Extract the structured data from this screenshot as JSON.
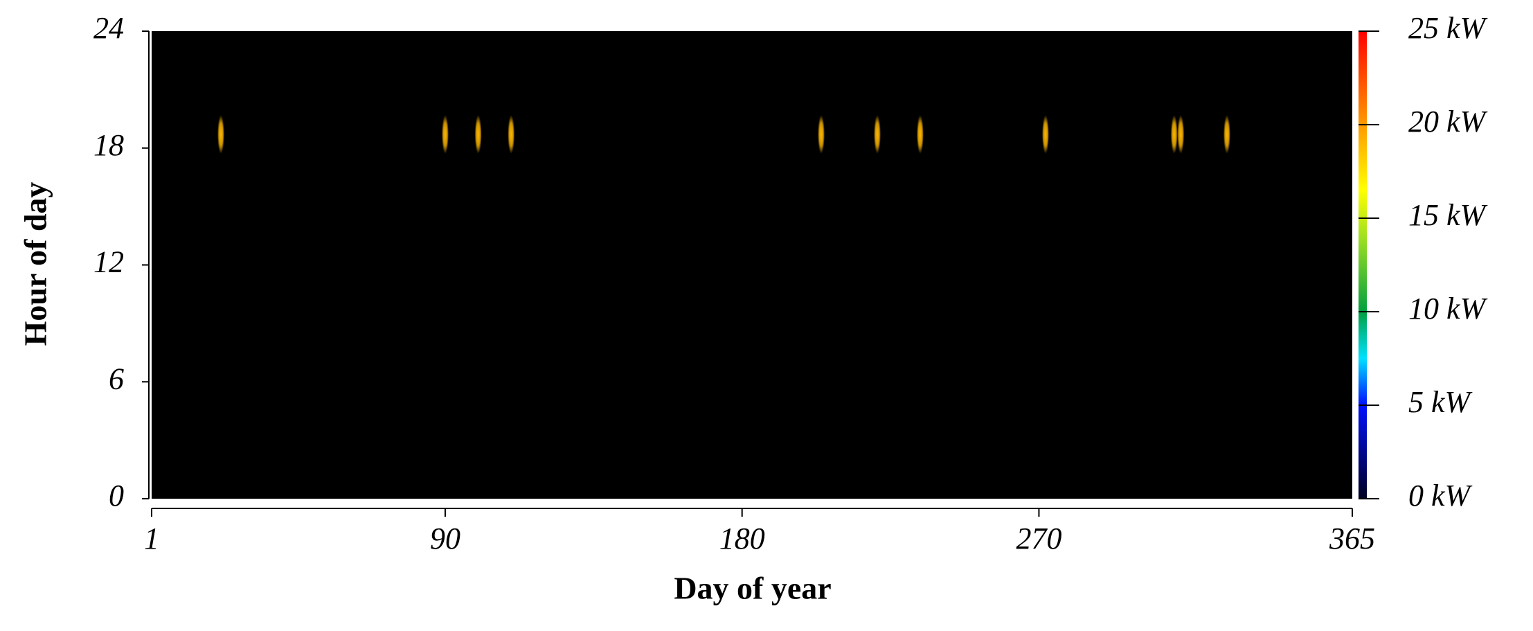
{
  "chart_data": {
    "type": "heatmap",
    "x_label": "Day of year",
    "y_label": "Hour of day",
    "xlim": [
      1,
      365
    ],
    "xticks": [
      1,
      90,
      180,
      270,
      365
    ],
    "ylim": [
      0,
      24
    ],
    "yticks": [
      0,
      6,
      12,
      18,
      24
    ],
    "days": [
      22,
      90,
      100,
      110,
      204,
      221,
      234,
      272,
      311,
      313,
      327
    ],
    "hours": [
      18.7,
      18.7,
      18.7,
      18.7,
      18.7,
      18.7,
      18.7,
      18.7,
      18.7,
      18.7,
      18.7
    ],
    "values": [
      19,
      19,
      19,
      19,
      19,
      19,
      19,
      19,
      19,
      19,
      19
    ],
    "background": "#000000",
    "colorbar": {
      "lim": [
        0,
        25
      ],
      "ticks": [
        {
          "value": 0,
          "label": "0 kW"
        },
        {
          "value": 5,
          "label": "5 kW"
        },
        {
          "value": 10,
          "label": "10 kW"
        },
        {
          "value": 15,
          "label": "15 kW"
        },
        {
          "value": 20,
          "label": "20 kW"
        },
        {
          "value": 25,
          "label": "25 kW"
        }
      ],
      "colorscale": [
        [
          0,
          "#000020"
        ],
        [
          5,
          "#0010ff"
        ],
        [
          7.5,
          "#00e0ff"
        ],
        [
          10,
          "#00a040"
        ],
        [
          14,
          "#a0e020"
        ],
        [
          16.5,
          "#ffff00"
        ],
        [
          20,
          "#ff9a00"
        ],
        [
          25,
          "#ff0000"
        ]
      ]
    }
  }
}
